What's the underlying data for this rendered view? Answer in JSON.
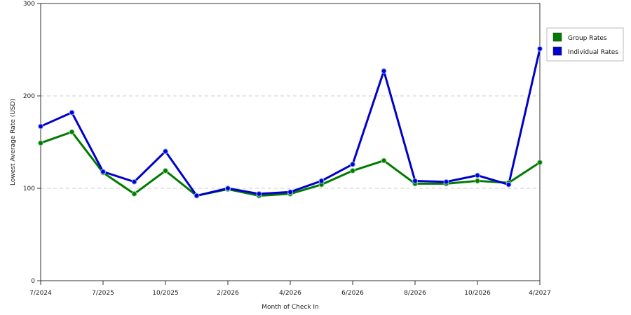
{
  "chart_data": {
    "type": "line",
    "xlabel": "Month of Check In",
    "ylabel": "Lowest Average Rate (USD)",
    "ylim": [
      0,
      300
    ],
    "yticks": [
      0,
      100,
      200,
      300
    ],
    "grid": true,
    "legend_position": "right",
    "x_tick_labels": [
      "7/2024",
      "7/2025",
      "10/2025",
      "2/2026",
      "4/2026",
      "6/2026",
      "8/2026",
      "10/2026",
      "4/2027"
    ],
    "x_tick_point_index": [
      0,
      2,
      4,
      6,
      8,
      10,
      12,
      14,
      16
    ],
    "point_count": 17,
    "series": [
      {
        "name": "Group Rates",
        "color": "#007a00",
        "values": [
          149,
          161,
          117,
          94,
          119,
          92,
          99,
          92,
          94,
          104,
          119,
          130,
          105,
          105,
          108,
          106,
          128
        ]
      },
      {
        "name": "Individual Rates",
        "color": "#0000cc",
        "values": [
          167,
          182,
          118,
          107,
          140,
          92,
          100,
          94,
          96,
          108,
          126,
          227,
          108,
          107,
          114,
          104,
          251
        ]
      }
    ]
  }
}
